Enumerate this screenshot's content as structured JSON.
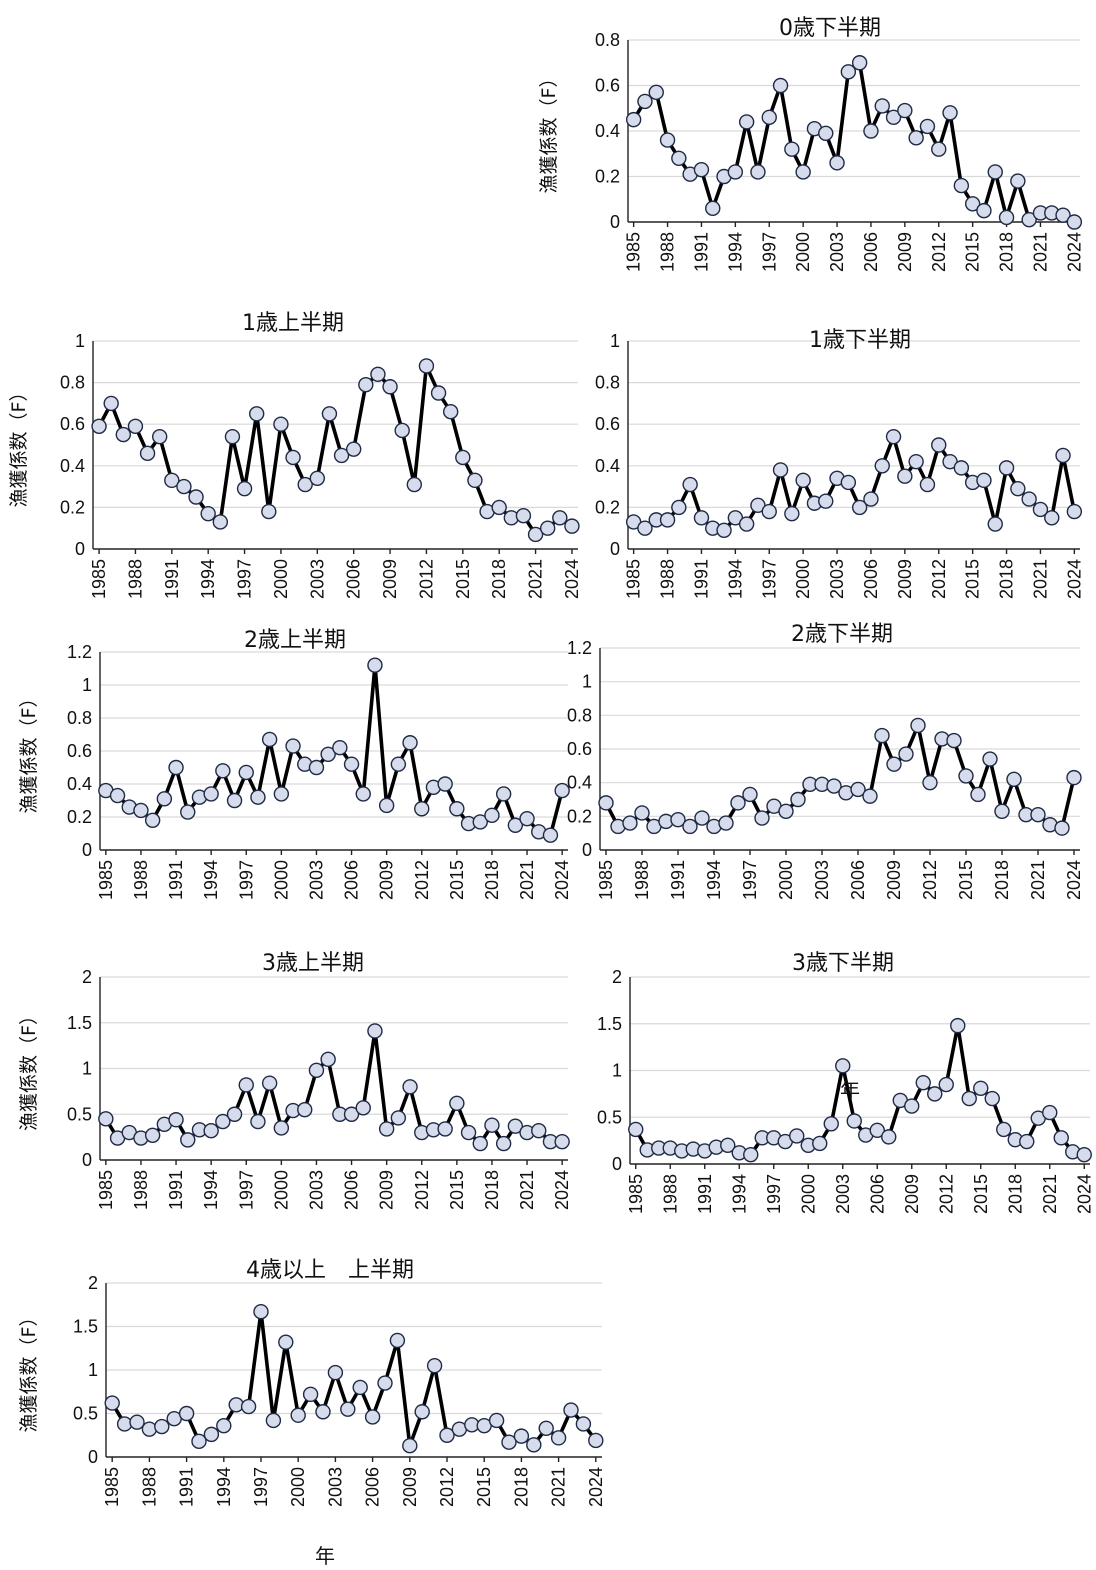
{
  "colors": {
    "line": "#000000",
    "marker_fill": "#d6dcec",
    "marker_edge": "#1f2a44",
    "grid": "#d9d9d9"
  },
  "xlabel": "年",
  "chart_data": [
    {
      "type": "line",
      "title": "0歳下半期",
      "ylabel": "漁獲係数（F）",
      "ylim": [
        0,
        0.8
      ],
      "yticks": [
        0,
        0.2,
        0.4,
        0.6,
        0.8
      ],
      "ytick_labels": [
        "0",
        "0.2",
        "0.4",
        "0.6",
        "0.8"
      ],
      "x": [
        1985,
        1986,
        1987,
        1988,
        1989,
        1990,
        1991,
        1992,
        1993,
        1994,
        1995,
        1996,
        1997,
        1998,
        1999,
        2000,
        2001,
        2002,
        2003,
        2004,
        2005,
        2006,
        2007,
        2008,
        2009,
        2010,
        2011,
        2012,
        2013,
        2014,
        2015,
        2016,
        2017,
        2018,
        2019,
        2020,
        2021,
        2022,
        2023,
        2024
      ],
      "x_ticks": [
        "1985",
        "1988",
        "1991",
        "1994",
        "1997",
        "2000",
        "2003",
        "2006",
        "2009",
        "2012",
        "2015",
        "2018",
        "2021",
        "2024"
      ],
      "values": [
        0.45,
        0.53,
        0.57,
        0.36,
        0.28,
        0.21,
        0.23,
        0.06,
        0.2,
        0.22,
        0.44,
        0.22,
        0.46,
        0.6,
        0.32,
        0.22,
        0.41,
        0.39,
        0.26,
        0.66,
        0.7,
        0.4,
        0.51,
        0.46,
        0.49,
        0.37,
        0.42,
        0.32,
        0.48,
        0.16,
        0.08,
        0.05,
        0.22,
        0.02,
        0.18,
        0.01,
        0.04,
        0.04,
        0.03,
        0.0
      ]
    },
    {
      "type": "line",
      "title": "1歳上半期",
      "ylabel": "漁獲係数（F）",
      "ylim": [
        0,
        1
      ],
      "yticks": [
        0,
        0.2,
        0.4,
        0.6,
        0.8,
        1
      ],
      "ytick_labels": [
        "0",
        "0.2",
        "0.4",
        "0.6",
        "0.8",
        "1"
      ],
      "x": [
        1985,
        1986,
        1987,
        1988,
        1989,
        1990,
        1991,
        1992,
        1993,
        1994,
        1995,
        1996,
        1997,
        1998,
        1999,
        2000,
        2001,
        2002,
        2003,
        2004,
        2005,
        2006,
        2007,
        2008,
        2009,
        2010,
        2011,
        2012,
        2013,
        2014,
        2015,
        2016,
        2017,
        2018,
        2019,
        2020,
        2021,
        2022,
        2023,
        2024
      ],
      "x_ticks": [
        "1985",
        "1988",
        "1991",
        "1994",
        "1997",
        "2000",
        "2003",
        "2006",
        "2009",
        "2012",
        "2015",
        "2018",
        "2021",
        "2024"
      ],
      "values": [
        0.59,
        0.7,
        0.55,
        0.59,
        0.46,
        0.54,
        0.33,
        0.3,
        0.25,
        0.17,
        0.13,
        0.54,
        0.29,
        0.65,
        0.18,
        0.6,
        0.44,
        0.31,
        0.34,
        0.65,
        0.45,
        0.48,
        0.79,
        0.84,
        0.78,
        0.57,
        0.31,
        0.88,
        0.75,
        0.66,
        0.44,
        0.33,
        0.18,
        0.2,
        0.15,
        0.16,
        0.07,
        0.1,
        0.15,
        0.11
      ]
    },
    {
      "type": "line",
      "title": "1歳下半期",
      "ylabel": "",
      "ylim": [
        0,
        1
      ],
      "yticks": [
        0,
        0.2,
        0.4,
        0.6,
        0.8,
        1
      ],
      "ytick_labels": [
        "0",
        "0.2",
        "0.4",
        "0.6",
        "0.8",
        "1"
      ],
      "x": [
        1985,
        1986,
        1987,
        1988,
        1989,
        1990,
        1991,
        1992,
        1993,
        1994,
        1995,
        1996,
        1997,
        1998,
        1999,
        2000,
        2001,
        2002,
        2003,
        2004,
        2005,
        2006,
        2007,
        2008,
        2009,
        2010,
        2011,
        2012,
        2013,
        2014,
        2015,
        2016,
        2017,
        2018,
        2019,
        2020,
        2021,
        2022,
        2023,
        2024
      ],
      "x_ticks": [
        "1985",
        "1988",
        "1991",
        "1994",
        "1997",
        "2000",
        "2003",
        "2006",
        "2009",
        "2012",
        "2015",
        "2018",
        "2021",
        "2024"
      ],
      "values": [
        0.13,
        0.1,
        0.14,
        0.14,
        0.2,
        0.31,
        0.15,
        0.1,
        0.09,
        0.15,
        0.12,
        0.21,
        0.18,
        0.38,
        0.17,
        0.33,
        0.22,
        0.23,
        0.34,
        0.32,
        0.2,
        0.24,
        0.4,
        0.54,
        0.35,
        0.42,
        0.31,
        0.5,
        0.42,
        0.39,
        0.32,
        0.33,
        0.12,
        0.39,
        0.29,
        0.24,
        0.19,
        0.15,
        0.45,
        0.18
      ]
    },
    {
      "type": "line",
      "title": "2歳上半期",
      "ylabel": "漁獲係数（F）",
      "ylim": [
        0,
        1.2
      ],
      "yticks": [
        0,
        0.2,
        0.4,
        0.6,
        0.8,
        1,
        1.2
      ],
      "ytick_labels": [
        "0",
        "0.2",
        "0.4",
        "0.6",
        "0.8",
        "1",
        "1.2"
      ],
      "x": [
        1985,
        1986,
        1987,
        1988,
        1989,
        1990,
        1991,
        1992,
        1993,
        1994,
        1995,
        1996,
        1997,
        1998,
        1999,
        2000,
        2001,
        2002,
        2003,
        2004,
        2005,
        2006,
        2007,
        2008,
        2009,
        2010,
        2011,
        2012,
        2013,
        2014,
        2015,
        2016,
        2017,
        2018,
        2019,
        2020,
        2021,
        2022,
        2023,
        2024
      ],
      "x_ticks": [
        "1985",
        "1988",
        "1991",
        "1994",
        "1997",
        "2000",
        "2003",
        "2006",
        "2009",
        "2012",
        "2015",
        "2018",
        "2021",
        "2024"
      ],
      "values": [
        0.36,
        0.33,
        0.26,
        0.24,
        0.18,
        0.31,
        0.5,
        0.23,
        0.32,
        0.34,
        0.48,
        0.3,
        0.47,
        0.32,
        0.67,
        0.34,
        0.63,
        0.52,
        0.5,
        0.58,
        0.62,
        0.52,
        0.34,
        1.12,
        0.27,
        0.52,
        0.65,
        0.25,
        0.38,
        0.4,
        0.25,
        0.16,
        0.17,
        0.21,
        0.34,
        0.15,
        0.19,
        0.11,
        0.09,
        0.36
      ]
    },
    {
      "type": "line",
      "title": "2歳下半期",
      "ylabel": "",
      "ylim": [
        0,
        1.2
      ],
      "yticks": [
        0,
        0.2,
        0.4,
        0.6,
        0.8,
        1,
        1.2
      ],
      "ytick_labels": [
        "0",
        "0.2",
        "0.4",
        "0.6",
        "0.8",
        "1",
        "1.2"
      ],
      "x": [
        1985,
        1986,
        1987,
        1988,
        1989,
        1990,
        1991,
        1992,
        1993,
        1994,
        1995,
        1996,
        1997,
        1998,
        1999,
        2000,
        2001,
        2002,
        2003,
        2004,
        2005,
        2006,
        2007,
        2008,
        2009,
        2010,
        2011,
        2012,
        2013,
        2014,
        2015,
        2016,
        2017,
        2018,
        2019,
        2020,
        2021,
        2022,
        2023,
        2024
      ],
      "x_ticks": [
        "1985",
        "1988",
        "1991",
        "1994",
        "1997",
        "2000",
        "2003",
        "2006",
        "2009",
        "2012",
        "2015",
        "2018",
        "2021",
        "2024"
      ],
      "values": [
        0.28,
        0.14,
        0.16,
        0.22,
        0.14,
        0.17,
        0.18,
        0.14,
        0.19,
        0.14,
        0.16,
        0.28,
        0.33,
        0.19,
        0.26,
        0.23,
        0.3,
        0.39,
        0.39,
        0.38,
        0.34,
        0.36,
        0.32,
        0.68,
        0.51,
        0.57,
        0.74,
        0.4,
        0.66,
        0.65,
        0.44,
        0.33,
        0.54,
        0.23,
        0.42,
        0.21,
        0.21,
        0.15,
        0.13,
        0.43
      ]
    },
    {
      "type": "line",
      "title": "3歳上半期",
      "ylabel": "漁獲係数（F）",
      "ylim": [
        0,
        2
      ],
      "yticks": [
        0,
        0.5,
        1,
        1.5,
        2
      ],
      "ytick_labels": [
        "0",
        "0.5",
        "1",
        "1.5",
        "2"
      ],
      "x": [
        1985,
        1986,
        1987,
        1988,
        1989,
        1990,
        1991,
        1992,
        1993,
        1994,
        1995,
        1996,
        1997,
        1998,
        1999,
        2000,
        2001,
        2002,
        2003,
        2004,
        2005,
        2006,
        2007,
        2008,
        2009,
        2010,
        2011,
        2012,
        2013,
        2014,
        2015,
        2016,
        2017,
        2018,
        2019,
        2020,
        2021,
        2022,
        2023,
        2024
      ],
      "x_ticks": [
        "1985",
        "1988",
        "1991",
        "1994",
        "1997",
        "2000",
        "2003",
        "2006",
        "2009",
        "2012",
        "2015",
        "2018",
        "2021",
        "2024"
      ],
      "values": [
        0.45,
        0.24,
        0.3,
        0.24,
        0.27,
        0.39,
        0.44,
        0.22,
        0.33,
        0.32,
        0.42,
        0.5,
        0.82,
        0.42,
        0.84,
        0.35,
        0.54,
        0.55,
        0.98,
        1.1,
        0.5,
        0.5,
        0.57,
        1.41,
        0.34,
        0.46,
        0.8,
        0.3,
        0.33,
        0.34,
        0.62,
        0.3,
        0.18,
        0.38,
        0.18,
        0.37,
        0.3,
        0.32,
        0.2,
        0.2
      ]
    },
    {
      "type": "line",
      "title": "3歳下半期",
      "ylabel": "",
      "ylim": [
        0,
        2
      ],
      "yticks": [
        0,
        0.5,
        1,
        1.5,
        2
      ],
      "ytick_labels": [
        "0",
        "0.5",
        "1",
        "1.5",
        "2"
      ],
      "x": [
        1985,
        1986,
        1987,
        1988,
        1989,
        1990,
        1991,
        1992,
        1993,
        1994,
        1995,
        1996,
        1997,
        1998,
        1999,
        2000,
        2001,
        2002,
        2003,
        2004,
        2005,
        2006,
        2007,
        2008,
        2009,
        2010,
        2011,
        2012,
        2013,
        2014,
        2015,
        2016,
        2017,
        2018,
        2019,
        2020,
        2021,
        2022,
        2023,
        2024
      ],
      "x_ticks": [
        "1985",
        "1988",
        "1991",
        "1994",
        "1997",
        "2000",
        "2003",
        "2006",
        "2009",
        "2012",
        "2015",
        "2018",
        "2021",
        "2024"
      ],
      "values": [
        0.37,
        0.15,
        0.17,
        0.17,
        0.14,
        0.16,
        0.14,
        0.18,
        0.2,
        0.12,
        0.1,
        0.28,
        0.28,
        0.24,
        0.3,
        0.2,
        0.22,
        0.43,
        1.05,
        0.46,
        0.31,
        0.36,
        0.29,
        0.68,
        0.62,
        0.87,
        0.75,
        0.85,
        1.48,
        0.7,
        0.81,
        0.7,
        0.37,
        0.26,
        0.24,
        0.49,
        0.55,
        0.28,
        0.13,
        0.1
      ]
    },
    {
      "type": "line",
      "title": "4歳以上　上半期",
      "ylabel": "漁獲係数（F）",
      "ylim": [
        0,
        2
      ],
      "yticks": [
        0,
        0.5,
        1,
        1.5,
        2
      ],
      "ytick_labels": [
        "0",
        "0.5",
        "1",
        "1.5",
        "2"
      ],
      "x": [
        1985,
        1986,
        1987,
        1988,
        1989,
        1990,
        1991,
        1992,
        1993,
        1994,
        1995,
        1996,
        1997,
        1998,
        1999,
        2000,
        2001,
        2002,
        2003,
        2004,
        2005,
        2006,
        2007,
        2008,
        2009,
        2010,
        2011,
        2012,
        2013,
        2014,
        2015,
        2016,
        2017,
        2018,
        2019,
        2020,
        2021,
        2022,
        2023,
        2024
      ],
      "x_ticks": [
        "1985",
        "1988",
        "1991",
        "1994",
        "1997",
        "2000",
        "2003",
        "2006",
        "2009",
        "2012",
        "2015",
        "2018",
        "2021",
        "2024"
      ],
      "values": [
        0.62,
        0.38,
        0.4,
        0.32,
        0.35,
        0.44,
        0.5,
        0.18,
        0.26,
        0.36,
        0.6,
        0.58,
        1.67,
        0.42,
        1.32,
        0.48,
        0.72,
        0.52,
        0.97,
        0.55,
        0.8,
        0.46,
        0.85,
        1.34,
        0.13,
        0.52,
        1.05,
        0.25,
        0.32,
        0.37,
        0.36,
        0.42,
        0.17,
        0.24,
        0.14,
        0.33,
        0.22,
        0.54,
        0.38,
        0.19
      ]
    }
  ]
}
